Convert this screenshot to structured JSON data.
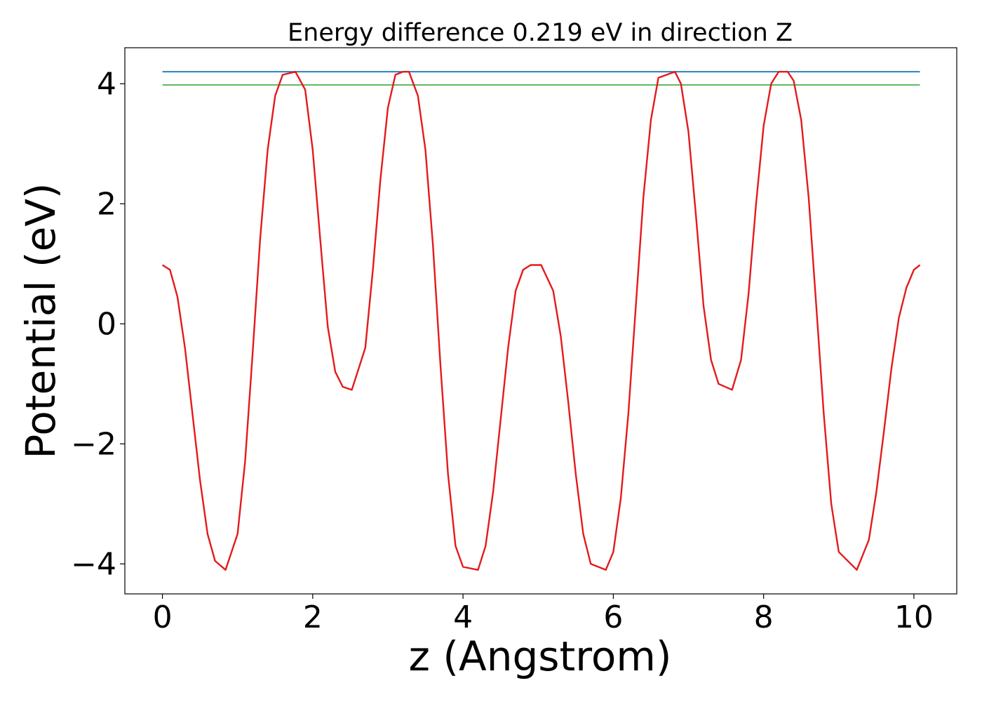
{
  "chart_data": {
    "type": "line",
    "title": "Energy difference 0.219 eV in direction Z",
    "xlabel": "z (Angstrom)",
    "ylabel": "Potential (eV)",
    "xlim": [
      -0.5,
      10.57
    ],
    "ylim": [
      -4.5,
      4.6
    ],
    "x_ticks": [
      0,
      2,
      4,
      6,
      8,
      10
    ],
    "x_tick_labels": [
      "0",
      "2",
      "4",
      "6",
      "8",
      "10"
    ],
    "y_ticks": [
      -4,
      -2,
      0,
      2,
      4
    ],
    "y_tick_labels": [
      "−4",
      "−2",
      "0",
      "2",
      "4"
    ],
    "grid": false,
    "legend": "none",
    "series": [
      {
        "color": "#e41a1c",
        "x": [
          0,
          0.1,
          0.2,
          0.3,
          0.4,
          0.5,
          0.6,
          0.7,
          0.84,
          1.0,
          1.1,
          1.2,
          1.3,
          1.4,
          1.5,
          1.6,
          1.77,
          1.9,
          2.0,
          2.1,
          2.2,
          2.3,
          2.4,
          2.52,
          2.7,
          2.8,
          2.9,
          3.0,
          3.1,
          3.2,
          3.28,
          3.4,
          3.5,
          3.6,
          3.7,
          3.8,
          3.9,
          4.0,
          4.2,
          4.3,
          4.4,
          4.5,
          4.6,
          4.7,
          4.8,
          4.9,
          5.04,
          5.2,
          5.3,
          5.4,
          5.5,
          5.6,
          5.7,
          5.9,
          6.0,
          6.1,
          6.2,
          6.3,
          6.4,
          6.5,
          6.6,
          6.82,
          6.9,
          7.0,
          7.1,
          7.2,
          7.3,
          7.4,
          7.58,
          7.7,
          7.8,
          7.9,
          8.0,
          8.1,
          8.2,
          8.32,
          8.4,
          8.5,
          8.6,
          8.7,
          8.8,
          8.9,
          9.0,
          9.24,
          9.4,
          9.5,
          9.6,
          9.7,
          9.8,
          9.9,
          10.0,
          10.08
        ],
        "y": [
          0.98,
          0.9,
          0.45,
          -0.4,
          -1.5,
          -2.6,
          -3.5,
          -3.95,
          -4.1,
          -3.5,
          -2.3,
          -0.5,
          1.4,
          2.9,
          3.8,
          4.15,
          4.2,
          3.9,
          2.9,
          1.4,
          -0.05,
          -0.8,
          -1.05,
          -1.1,
          -0.4,
          0.9,
          2.4,
          3.6,
          4.15,
          4.2,
          4.2,
          3.8,
          2.9,
          1.3,
          -0.7,
          -2.5,
          -3.7,
          -4.05,
          -4.1,
          -3.7,
          -2.8,
          -1.6,
          -0.4,
          0.55,
          0.9,
          0.98,
          0.98,
          0.55,
          -0.2,
          -1.3,
          -2.5,
          -3.5,
          -4.0,
          -4.1,
          -3.8,
          -2.9,
          -1.5,
          0.3,
          2.1,
          3.4,
          4.1,
          4.2,
          4.0,
          3.2,
          1.8,
          0.3,
          -0.6,
          -1.0,
          -1.1,
          -0.6,
          0.5,
          2.0,
          3.3,
          4.0,
          4.2,
          4.2,
          4.05,
          3.4,
          2.1,
          0.3,
          -1.5,
          -3.0,
          -3.8,
          -4.1,
          -3.6,
          -2.8,
          -1.8,
          -0.75,
          0.1,
          0.6,
          0.9,
          0.98
        ]
      },
      {
        "color": "#1f77b4",
        "x": [
          0,
          10.08
        ],
        "y": [
          4.2,
          4.2
        ]
      },
      {
        "color": "#4daf4a",
        "x": [
          0,
          10.08
        ],
        "y": [
          3.98,
          3.98
        ]
      }
    ]
  }
}
